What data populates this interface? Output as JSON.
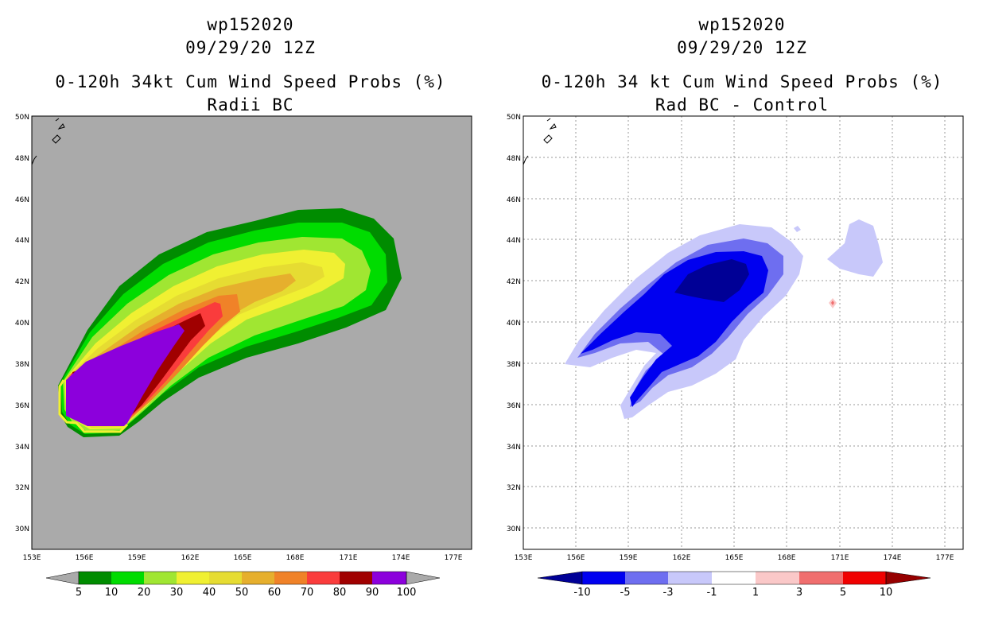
{
  "chart_data": [
    {
      "type": "heatmap",
      "title_lines": [
        "wp152020",
        "09/29/20 12Z",
        "0-120h 34kt Cum Wind Speed Probs (%)",
        "Radii BC"
      ],
      "lon_ticks": [
        "153E",
        "156E",
        "159E",
        "162E",
        "165E",
        "168E",
        "171E",
        "174E",
        "177E"
      ],
      "lat_ticks": [
        "50N",
        "48N",
        "46N",
        "44N",
        "42N",
        "40N",
        "38N",
        "36N",
        "34N",
        "32N",
        "30N"
      ],
      "lon_range": [
        153,
        178
      ],
      "lat_range": [
        29,
        50
      ],
      "grid": false,
      "colorbar": {
        "labels": [
          "5",
          "10",
          "20",
          "30",
          "40",
          "50",
          "60",
          "70",
          "80",
          "90",
          "100"
        ],
        "colors": [
          "#008c00",
          "#00dc00",
          "#a0e632",
          "#f0f032",
          "#e6dc32",
          "#e6af2d",
          "#f08228",
          "#fa3c3c",
          "#a00000",
          "#8c00dc"
        ]
      }
    },
    {
      "type": "heatmap",
      "title_lines": [
        "wp152020",
        "09/29/20 12Z",
        "0-120h 34 kt Cum Wind Speed Probs (%)",
        "Rad BC - Control"
      ],
      "lon_ticks": [
        "153E",
        "156E",
        "159E",
        "162E",
        "165E",
        "168E",
        "171E",
        "174E",
        "177E"
      ],
      "lat_ticks": [
        "50N",
        "48N",
        "46N",
        "44N",
        "42N",
        "40N",
        "38N",
        "36N",
        "34N",
        "32N",
        "30N"
      ],
      "lon_range": [
        153,
        178
      ],
      "lat_range": [
        29,
        50
      ],
      "grid": true,
      "colorbar": {
        "labels": [
          "-10",
          "-5",
          "-3",
          "-1",
          "1",
          "3",
          "5",
          "10"
        ],
        "colors": [
          "#000096",
          "#0000f0",
          "#6e6ef0",
          "#c8c8fa",
          "#ffffff",
          "#fac8c8",
          "#f06e6e",
          "#f00000",
          "#960000"
        ]
      }
    }
  ]
}
